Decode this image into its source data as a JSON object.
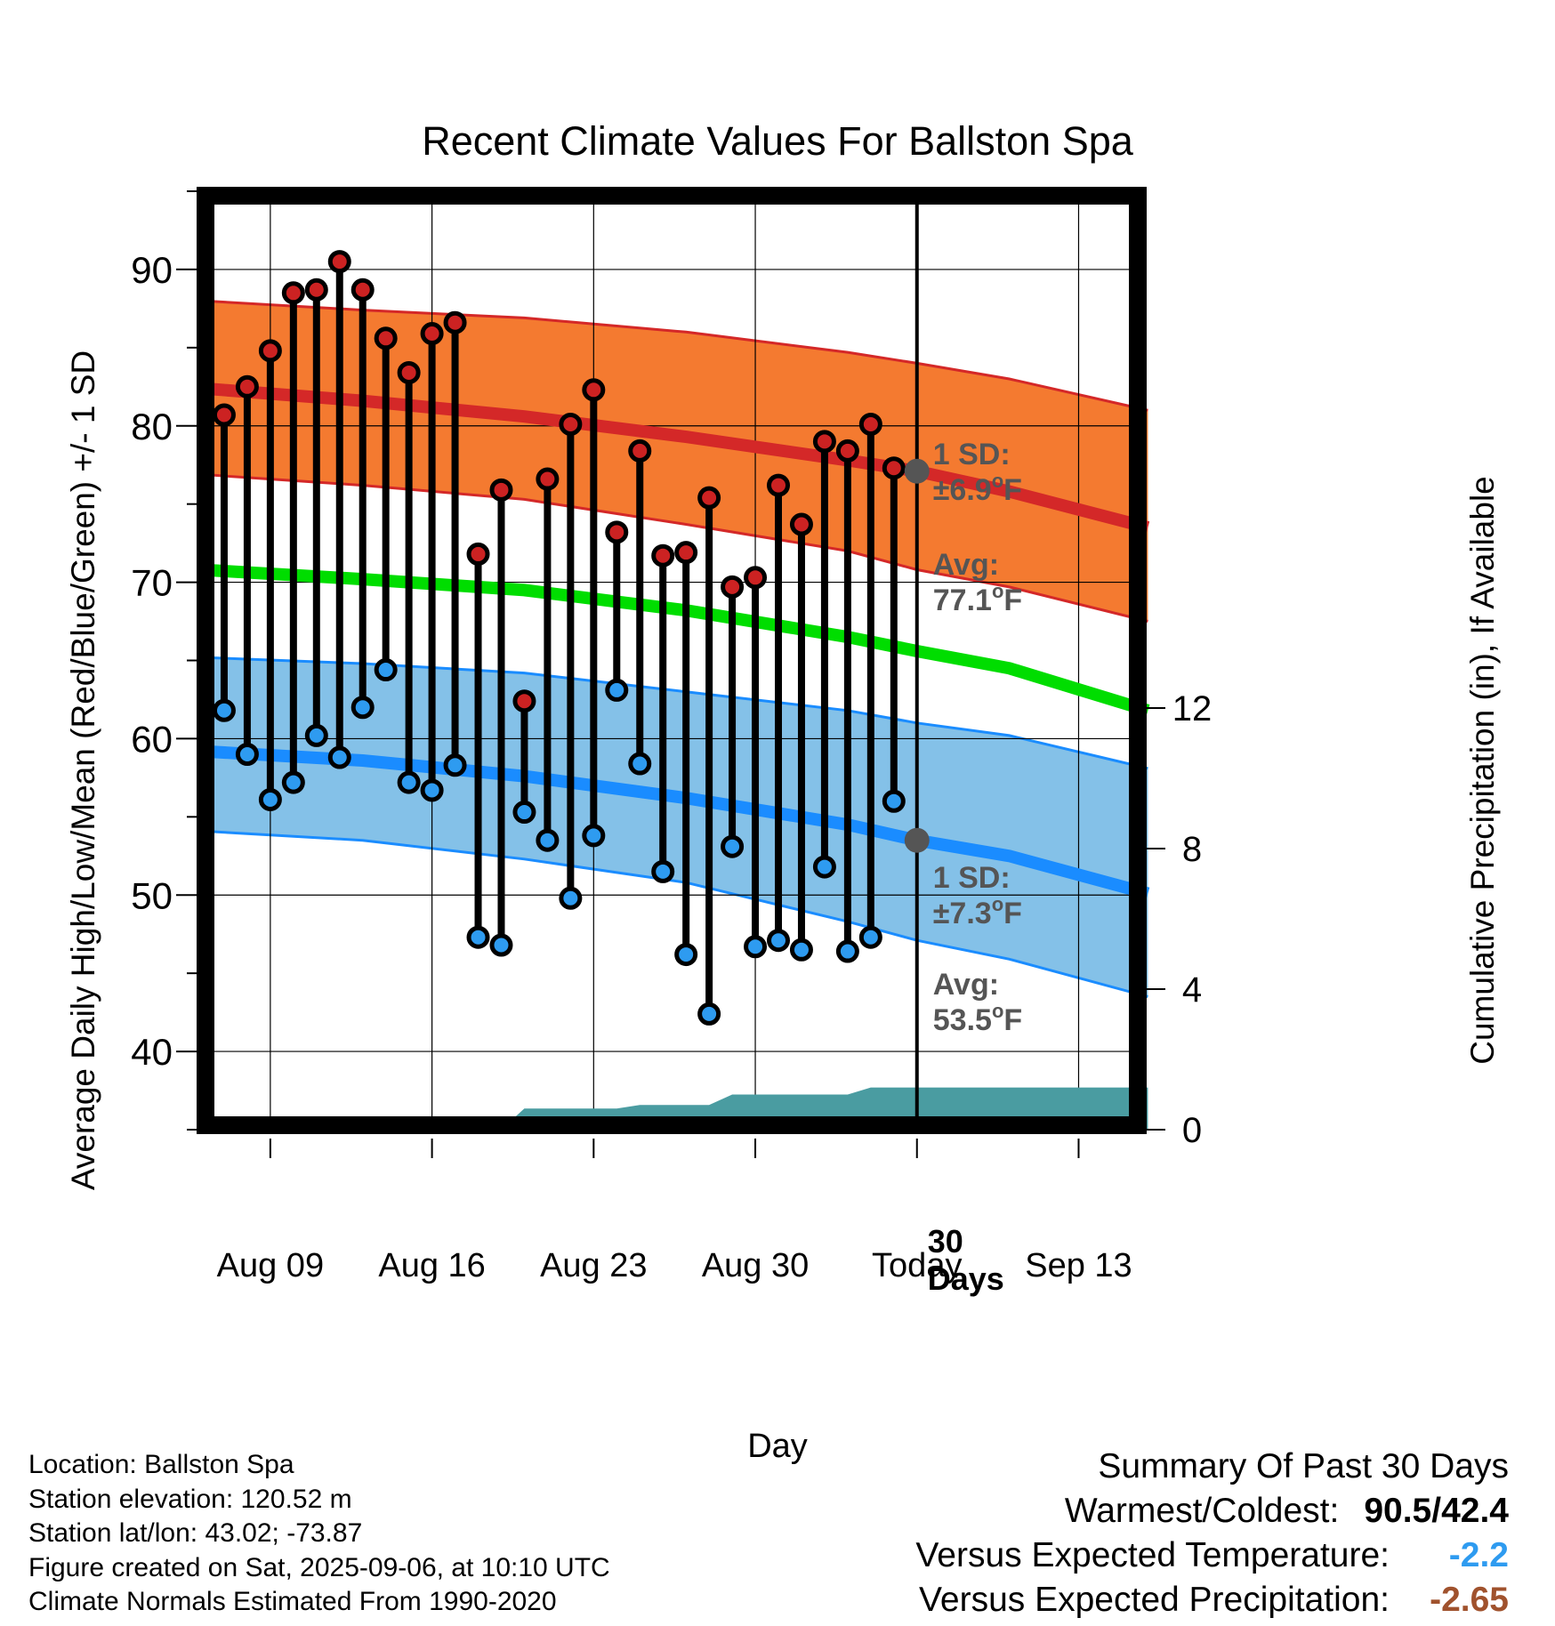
{
  "title": "Recent Climate Values For Ballston Spa",
  "colors": {
    "high_band": "#f47a30",
    "high_line": "#d42828",
    "high_band_edge": "#d42828",
    "low_band": "#84c1e8",
    "low_line": "#1a8cff",
    "low_band_edge": "#1a8cff",
    "mean_line": "#00dd00",
    "precip": "#4a9ca1",
    "high_marker": "#cc2222",
    "low_marker": "#2e9bf0",
    "today_marker": "#555555",
    "annotation": "#555555",
    "summary_temp": "#2e9bf0",
    "summary_precip": "#a0522d"
  },
  "chart_data": {
    "type": "line",
    "title": "Recent Climate Values For Ballston Spa",
    "xlabel": "Day",
    "ylabel": "Average Daily High/Low/Mean (Red/Blue/Green) +/- 1 SD",
    "ylabel_right": "Cumulative Precipitation (in), If Available",
    "xlim": [
      "2025-08-06",
      "2025-09-16"
    ],
    "ylim": [
      35,
      95
    ],
    "ylim_right": [
      0,
      28.2
    ],
    "x_ticks": [
      {
        "date": "2025-08-09",
        "label": "Aug 09"
      },
      {
        "date": "2025-08-16",
        "label": "Aug 16"
      },
      {
        "date": "2025-08-23",
        "label": "Aug 23"
      },
      {
        "date": "2025-08-30",
        "label": "Aug 30"
      },
      {
        "date": "2025-09-06",
        "label": "Today"
      },
      {
        "date": "2025-09-13",
        "label": "Sep 13"
      }
    ],
    "y_ticks": [
      "40",
      "50",
      "60",
      "70",
      "80",
      "90"
    ],
    "y_ticks_right": [
      "0",
      "4",
      "8",
      "12"
    ],
    "grid": true,
    "today": "2025-09-06",
    "days": [
      "2025-08-07",
      "2025-08-08",
      "2025-08-09",
      "2025-08-10",
      "2025-08-11",
      "2025-08-12",
      "2025-08-13",
      "2025-08-14",
      "2025-08-15",
      "2025-08-16",
      "2025-08-17",
      "2025-08-18",
      "2025-08-19",
      "2025-08-20",
      "2025-08-21",
      "2025-08-22",
      "2025-08-23",
      "2025-08-24",
      "2025-08-25",
      "2025-08-26",
      "2025-08-27",
      "2025-08-28",
      "2025-08-29",
      "2025-08-30",
      "2025-08-31",
      "2025-09-01",
      "2025-09-02",
      "2025-09-03",
      "2025-09-04",
      "2025-09-05"
    ],
    "series": [
      {
        "name": "High",
        "values": [
          80.7,
          82.5,
          84.8,
          88.5,
          88.7,
          90.5,
          88.7,
          85.6,
          83.4,
          85.9,
          86.6,
          71.8,
          75.9,
          62.4,
          76.6,
          80.1,
          82.3,
          73.2,
          78.4,
          71.7,
          71.9,
          75.4,
          69.7,
          70.3,
          76.2,
          73.7,
          79.0,
          78.4,
          80.1,
          77.3
        ]
      },
      {
        "name": "Low",
        "values": [
          61.8,
          59.0,
          56.1,
          57.2,
          60.2,
          58.8,
          62.0,
          64.4,
          57.2,
          56.7,
          58.3,
          47.3,
          46.8,
          55.3,
          53.5,
          49.8,
          53.8,
          63.1,
          58.4,
          51.5,
          46.2,
          42.4,
          53.1,
          46.7,
          47.1,
          46.5,
          51.8,
          46.4,
          47.3,
          56.0
        ]
      }
    ],
    "normals": {
      "days": [
        "2025-08-06",
        "2025-08-13",
        "2025-08-20",
        "2025-08-27",
        "2025-09-03",
        "2025-09-06",
        "2025-09-10",
        "2025-09-16"
      ],
      "high_avg": [
        82.4,
        81.6,
        80.6,
        79.3,
        77.8,
        77.1,
        75.8,
        73.5
      ],
      "high_upper": [
        88.0,
        87.4,
        86.9,
        86.0,
        84.7,
        84.0,
        83.0,
        81.0
      ],
      "high_lower": [
        76.9,
        76.2,
        75.3,
        73.7,
        72.0,
        70.8,
        69.7,
        67.5
      ],
      "mean_avg": [
        70.8,
        70.2,
        69.5,
        68.2,
        66.5,
        65.6,
        64.5,
        61.8
      ],
      "low_avg": [
        59.2,
        58.6,
        57.6,
        56.2,
        54.5,
        53.5,
        52.5,
        50.1
      ],
      "low_upper": [
        65.2,
        64.8,
        64.2,
        63.0,
        61.8,
        61.0,
        60.2,
        58.1
      ],
      "low_lower": [
        54.1,
        53.5,
        52.3,
        50.8,
        48.3,
        47.1,
        45.9,
        43.5
      ]
    },
    "cumulative_precip": {
      "days": [
        "2025-08-19",
        "2025-08-20",
        "2025-08-24",
        "2025-08-25",
        "2025-08-28",
        "2025-08-29",
        "2025-08-30",
        "2025-09-03",
        "2025-09-04",
        "2025-09-16"
      ],
      "values": [
        0.0,
        0.6,
        0.6,
        0.7,
        0.7,
        1.0,
        1.0,
        1.0,
        1.2,
        1.2
      ]
    },
    "annotations": {
      "high_sd_label": "1 SD:",
      "high_sd_value": "±6.9",
      "high_avg_label": "Avg:",
      "high_avg_value": "77.1",
      "low_sd_label": "1 SD:",
      "low_sd_value": "±7.3",
      "low_avg_label": "Avg:",
      "low_avg_value": "53.5",
      "unit_sup": "o",
      "unit": "F",
      "precip_label_1": "30",
      "precip_label_2": "Days"
    }
  },
  "info": {
    "location": "Location: Ballston Spa",
    "elevation": "Station elevation: 120.52 m",
    "latlon": "Station lat/lon: 43.02; -73.87",
    "created": "Figure created on Sat, 2025-09-06, at 10:10 UTC",
    "normals": "Climate Normals Estimated From 1990-2020"
  },
  "summary": {
    "title": "Summary Of Past 30 Days",
    "warmest_label": "Warmest/Coldest:",
    "warmest_value": "90.5/42.4",
    "temp_label": "Versus Expected Temperature:",
    "temp_value": "-2.2",
    "precip_label": "Versus Expected Precipitation:",
    "precip_value": "-2.65"
  }
}
